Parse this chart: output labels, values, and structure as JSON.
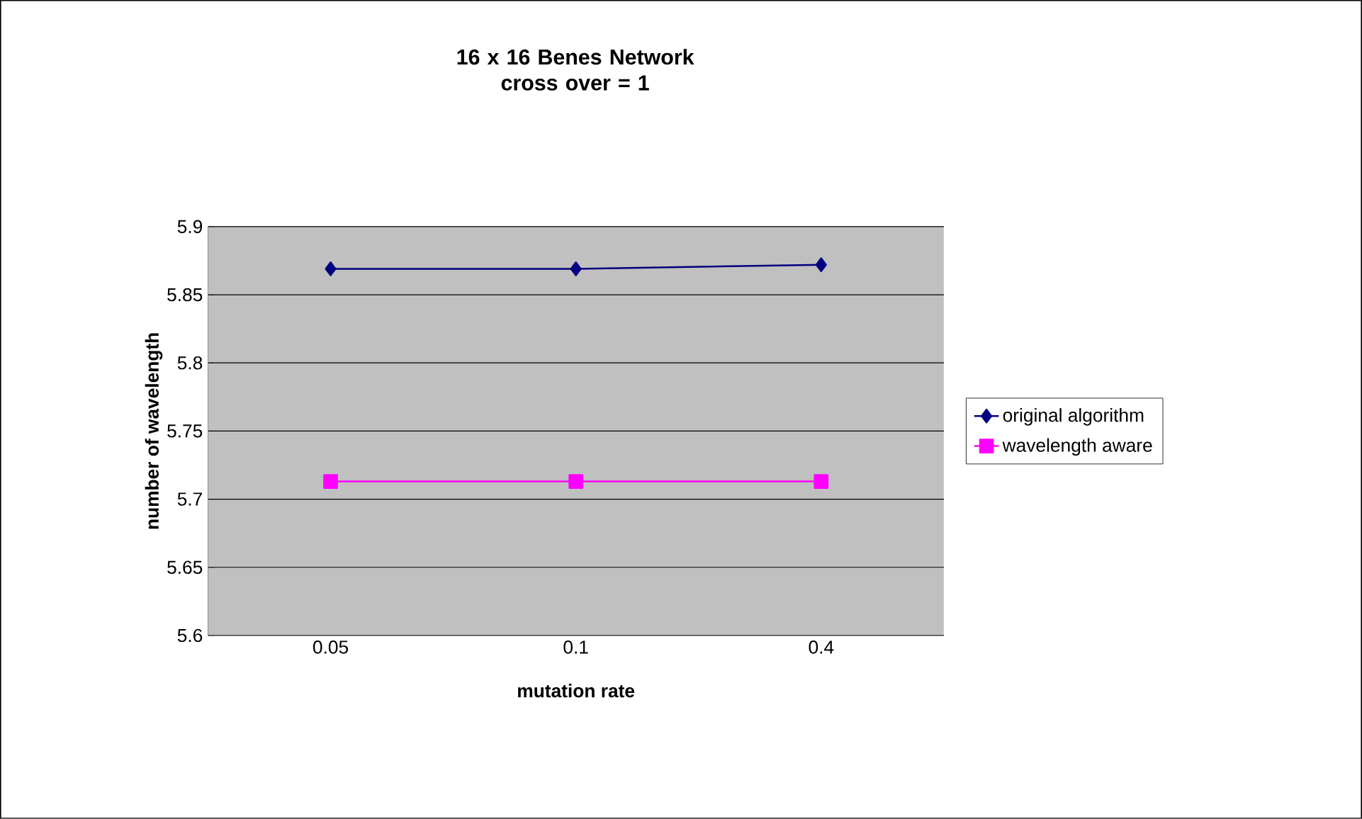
{
  "chart_data": {
    "type": "line",
    "title": "16 x 16 Benes Network cross over = 1",
    "xlabel": "mutation rate",
    "ylabel": "number of wavelength",
    "categories": [
      "0.05",
      "0.1",
      "0.4"
    ],
    "series": [
      {
        "name": "original algorithm",
        "color": "#000080",
        "marker": "diamond",
        "values": [
          5.869,
          5.869,
          5.872
        ]
      },
      {
        "name": "wavelength aware",
        "color": "#ff00ff",
        "marker": "square",
        "values": [
          5.713,
          5.713,
          5.713
        ]
      }
    ],
    "ylim": [
      5.6,
      5.9
    ],
    "yticks": [
      5.6,
      5.65,
      5.7,
      5.75,
      5.8,
      5.85,
      5.9
    ],
    "grid": "y",
    "legend": "right",
    "line_style": "solid"
  }
}
